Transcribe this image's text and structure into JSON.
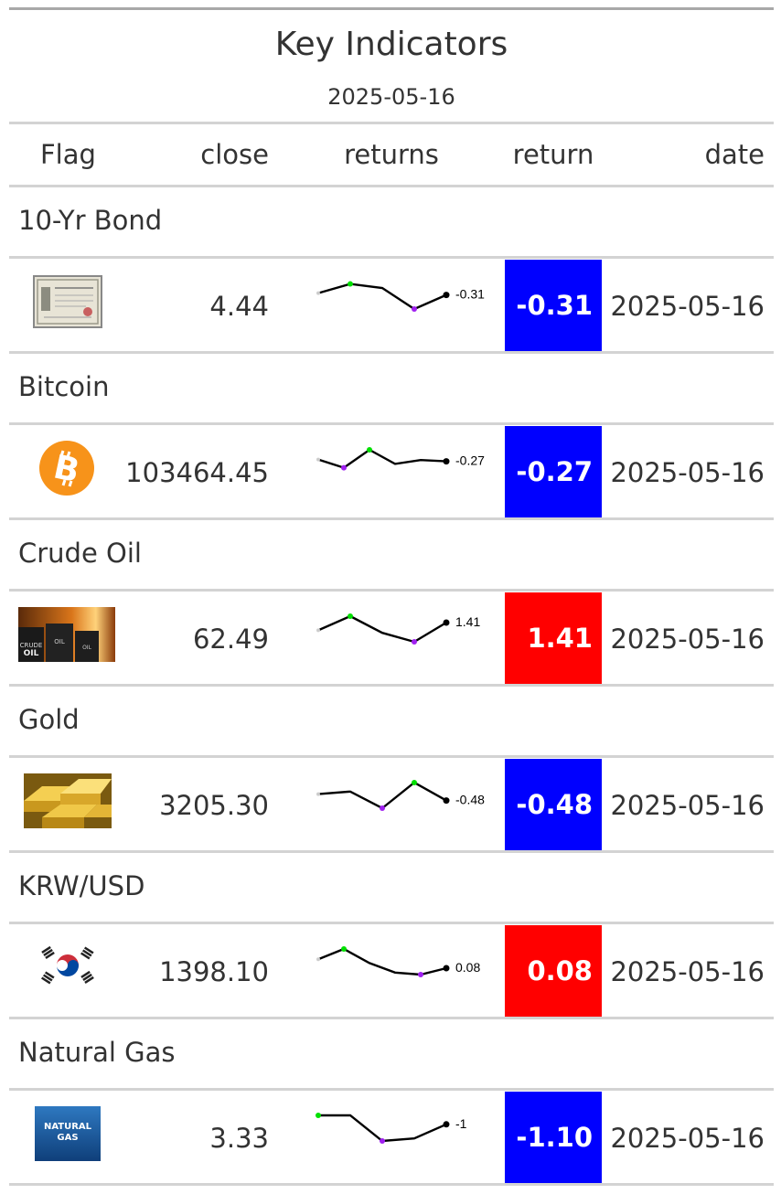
{
  "title": "Key Indicators",
  "subtitle": "2025-05-16",
  "columns": {
    "flag": "Flag",
    "close": "close",
    "returns": "returns",
    "return": "return",
    "date": "date"
  },
  "colors": {
    "negative": "#0000ff",
    "positive": "#ff0000",
    "spark_high": "#00e000",
    "spark_low": "#a020f0",
    "spark_line": "#000000"
  },
  "rows": [
    {
      "group": "10-Yr Bond",
      "flag_icon": "bond-certificate-icon",
      "close": "4.44",
      "spark": [
        0.62,
        0.98,
        0.82,
        0.0,
        0.55
      ],
      "spark_label": "-0.31",
      "return": "-0.31",
      "sign": "neg",
      "date": "2025-05-16"
    },
    {
      "group": "Bitcoin",
      "flag_icon": "bitcoin-icon",
      "close": "103464.45",
      "spark": [
        0.62,
        0.3,
        1.0,
        0.45,
        0.6,
        0.55
      ],
      "spark_label": "-0.27",
      "return": "-0.27",
      "sign": "neg",
      "date": "2025-05-16"
    },
    {
      "group": "Crude Oil",
      "flag_icon": "crude-oil-barrels-icon",
      "close": "62.49",
      "spark": [
        0.45,
        1.0,
        0.35,
        0.0,
        0.75
      ],
      "spark_label": "1.41",
      "return": "1.41",
      "sign": "pos",
      "date": "2025-05-16"
    },
    {
      "group": "Gold",
      "flag_icon": "gold-bars-icon",
      "close": "3205.30",
      "spark": [
        0.55,
        0.65,
        0.0,
        1.0,
        0.3
      ],
      "spark_label": "-0.48",
      "return": "-0.48",
      "sign": "neg",
      "date": "2025-05-16"
    },
    {
      "group": "KRW/USD",
      "flag_icon": "south-korea-flag-icon",
      "close": "1398.10",
      "spark": [
        0.6,
        1.0,
        0.45,
        0.08,
        0.0,
        0.25
      ],
      "spark_label": "0.08",
      "return": "0.08",
      "sign": "pos",
      "date": "2025-05-16"
    },
    {
      "group": "Natural Gas",
      "flag_icon": "natural-gas-icon",
      "flag_text": "NATURAL\nGAS",
      "close": "3.33",
      "spark": [
        1.0,
        1.0,
        0.0,
        0.1,
        0.65
      ],
      "spark_label": "-1",
      "return": "-1.10",
      "sign": "neg",
      "date": "2025-05-16"
    }
  ]
}
